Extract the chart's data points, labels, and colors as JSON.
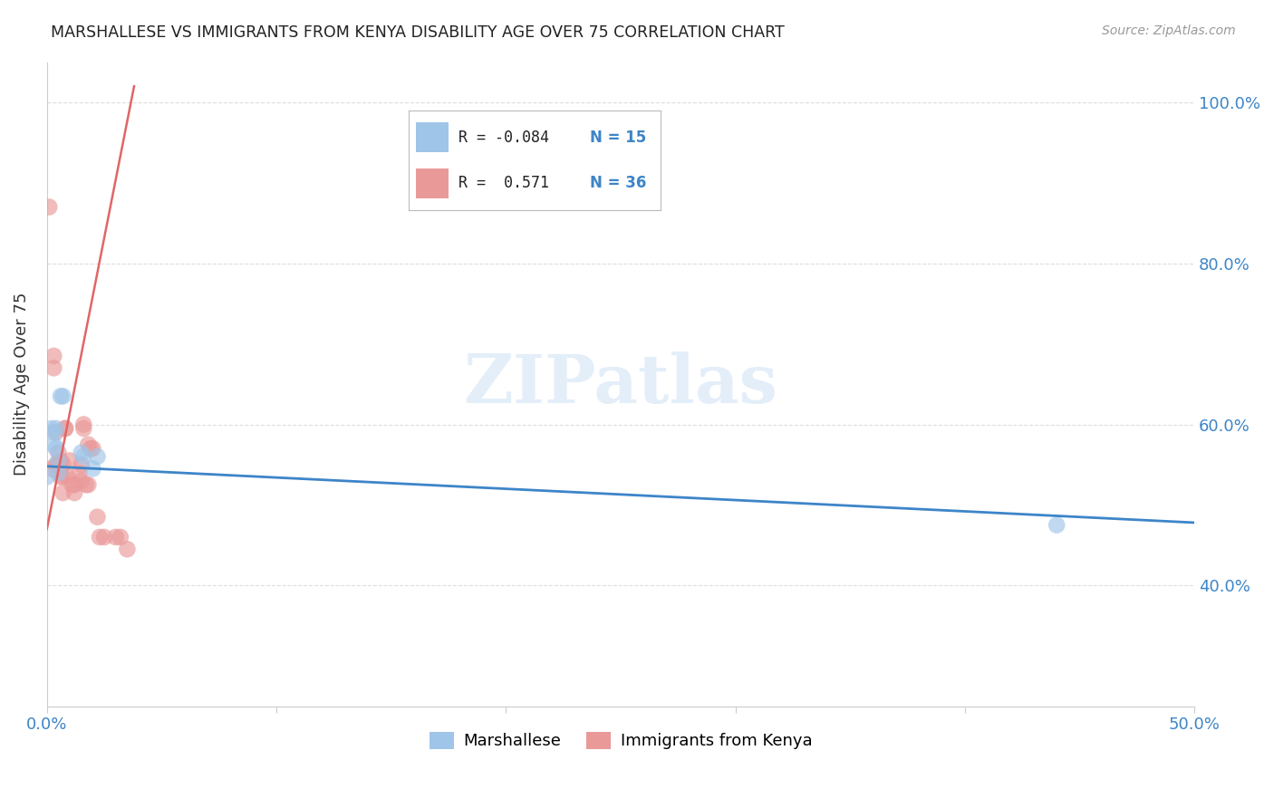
{
  "title": "MARSHALLESE VS IMMIGRANTS FROM KENYA DISABILITY AGE OVER 75 CORRELATION CHART",
  "source": "Source: ZipAtlas.com",
  "ylabel": "Disability Age Over 75",
  "xlim": [
    0.0,
    0.5
  ],
  "ylim": [
    0.25,
    1.05
  ],
  "ytick_positions": [
    0.4,
    0.6,
    0.8,
    1.0
  ],
  "ytick_labels": [
    "40.0%",
    "60.0%",
    "80.0%",
    "100.0%"
  ],
  "xtick_positions": [
    0.0,
    0.1,
    0.2,
    0.3,
    0.4,
    0.5
  ],
  "xtick_labels": [
    "0.0%",
    "",
    "",
    "",
    "",
    "50.0%"
  ],
  "blue_color": "#9fc5e8",
  "pink_color": "#ea9999",
  "blue_line_color": "#3d85c8",
  "pink_line_color": "#e06666",
  "legend_R_blue": "-0.084",
  "legend_N_blue": "15",
  "legend_R_pink": "0.571",
  "legend_N_pink": "36",
  "marshallese_x": [
    0.0,
    0.002,
    0.003,
    0.003,
    0.004,
    0.004,
    0.005,
    0.005,
    0.006,
    0.007,
    0.015,
    0.016,
    0.02,
    0.022,
    0.44
  ],
  "marshallese_y": [
    0.535,
    0.595,
    0.575,
    0.59,
    0.57,
    0.595,
    0.555,
    0.54,
    0.635,
    0.635,
    0.565,
    0.56,
    0.545,
    0.56,
    0.475
  ],
  "kenya_x": [
    0.001,
    0.002,
    0.003,
    0.003,
    0.004,
    0.004,
    0.005,
    0.005,
    0.006,
    0.006,
    0.007,
    0.007,
    0.007,
    0.008,
    0.008,
    0.009,
    0.01,
    0.011,
    0.012,
    0.012,
    0.014,
    0.015,
    0.015,
    0.016,
    0.016,
    0.017,
    0.018,
    0.018,
    0.019,
    0.02,
    0.022,
    0.023,
    0.025,
    0.03,
    0.032,
    0.035
  ],
  "kenya_y": [
    0.87,
    0.545,
    0.67,
    0.685,
    0.55,
    0.59,
    0.565,
    0.55,
    0.535,
    0.555,
    0.55,
    0.535,
    0.515,
    0.595,
    0.595,
    0.535,
    0.555,
    0.525,
    0.515,
    0.525,
    0.54,
    0.55,
    0.53,
    0.595,
    0.6,
    0.525,
    0.525,
    0.575,
    0.57,
    0.57,
    0.485,
    0.46,
    0.46,
    0.46,
    0.46,
    0.445
  ],
  "blue_trend_x": [
    0.0,
    0.5
  ],
  "blue_trend_y": [
    0.548,
    0.478
  ],
  "pink_trend_x": [
    0.0,
    0.038
  ],
  "pink_trend_y": [
    0.47,
    1.02
  ],
  "watermark_text": "ZIPatlas",
  "background_color": "#ffffff",
  "grid_color": "#dddddd",
  "tick_color": "#3d85c8",
  "axis_color": "#cccccc",
  "title_color": "#222222",
  "source_color": "#999999",
  "ylabel_color": "#333333"
}
